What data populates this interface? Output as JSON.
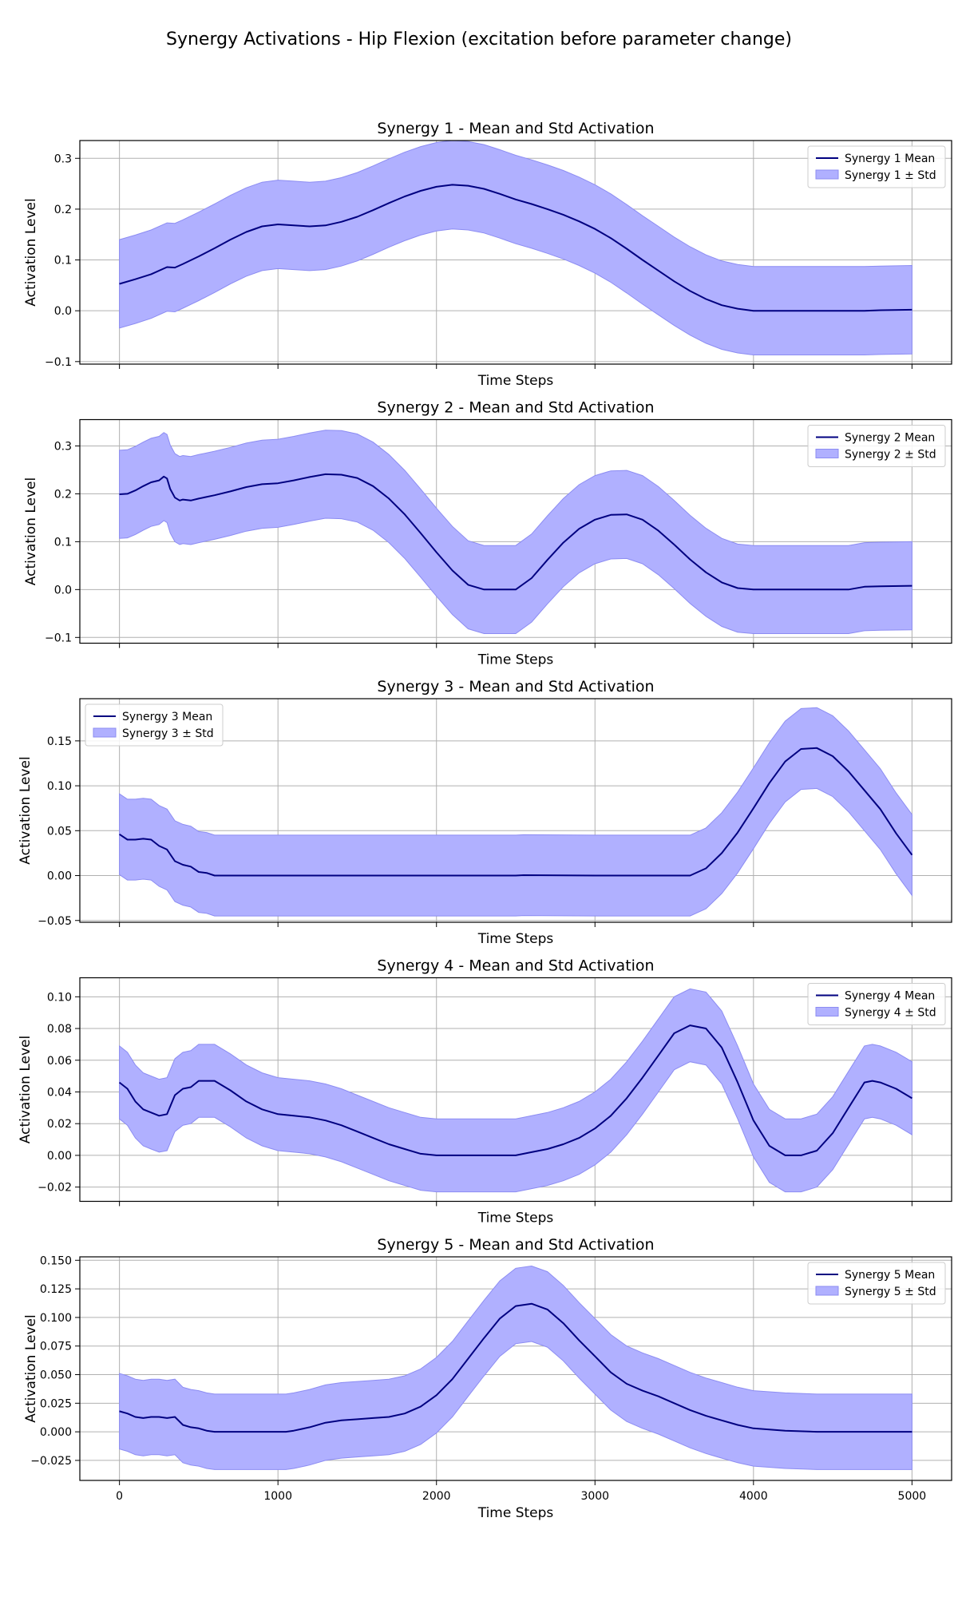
{
  "figure": {
    "title": "Synergy Activations - Hip Flexion (excitation before parameter change)"
  },
  "colors": {
    "mean_line": "#000080",
    "std_fill": "#b0b0ff",
    "std_edge": "#8c8cf2",
    "grid": "#b0b0b0",
    "axes": "#000000"
  },
  "chart_data": [
    {
      "type": "line",
      "title": "Synergy 1 - Mean and Std Activation",
      "xlabel": "Time Steps",
      "ylabel": "Activation Level",
      "xlim": [
        -250,
        5250
      ],
      "ylim": [
        -0.105,
        0.335
      ],
      "xticks": [
        0,
        1000,
        2000,
        3000,
        4000,
        5000
      ],
      "yticks": [
        -0.1,
        0.0,
        0.1,
        0.2,
        0.3
      ],
      "ytick_labels": [
        "−0.1",
        "0.0",
        "0.1",
        "0.2",
        "0.3"
      ],
      "show_xtick_labels": false,
      "grid": true,
      "legend_position": "top-right",
      "legend": [
        "Synergy 1 Mean",
        "Synergy 1 ± Std"
      ],
      "std": 0.087,
      "series": [
        {
          "name": "Synergy 1 Mean",
          "x": [
            0,
            100,
            200,
            300,
            350,
            400,
            500,
            600,
            700,
            800,
            900,
            1000,
            1100,
            1200,
            1300,
            1400,
            1500,
            1600,
            1700,
            1800,
            1900,
            2000,
            2100,
            2200,
            2300,
            2400,
            2500,
            2600,
            2700,
            2800,
            2900,
            3000,
            3100,
            3200,
            3300,
            3400,
            3500,
            3600,
            3700,
            3800,
            3900,
            4000,
            4200,
            4400,
            4600,
            4700,
            4800,
            5000
          ],
          "y": [
            0.053,
            0.062,
            0.072,
            0.086,
            0.085,
            0.092,
            0.107,
            0.123,
            0.14,
            0.155,
            0.166,
            0.17,
            0.168,
            0.166,
            0.168,
            0.175,
            0.185,
            0.198,
            0.212,
            0.225,
            0.236,
            0.244,
            0.248,
            0.246,
            0.24,
            0.23,
            0.219,
            0.21,
            0.2,
            0.189,
            0.176,
            0.161,
            0.143,
            0.122,
            0.1,
            0.079,
            0.058,
            0.039,
            0.023,
            0.011,
            0.004,
            0.0,
            0.0,
            0.0,
            0.0,
            0.0,
            0.001,
            0.002
          ]
        }
      ]
    },
    {
      "type": "line",
      "title": "Synergy 2 - Mean and Std Activation",
      "xlabel": "Time Steps",
      "ylabel": "Activation Level",
      "xlim": [
        -250,
        5250
      ],
      "ylim": [
        -0.112,
        0.355
      ],
      "xticks": [
        0,
        1000,
        2000,
        3000,
        4000,
        5000
      ],
      "yticks": [
        -0.1,
        0.0,
        0.1,
        0.2,
        0.3
      ],
      "ytick_labels": [
        "−0.1",
        "0.0",
        "0.1",
        "0.2",
        "0.3"
      ],
      "show_xtick_labels": false,
      "grid": true,
      "legend_position": "top-right",
      "legend": [
        "Synergy 2 Mean",
        "Synergy 2 ± Std"
      ],
      "std": 0.092,
      "series": [
        {
          "name": "Synergy 2 Mean",
          "x": [
            0,
            50,
            100,
            150,
            200,
            250,
            280,
            300,
            320,
            350,
            380,
            400,
            450,
            500,
            600,
            700,
            800,
            900,
            1000,
            1100,
            1200,
            1300,
            1400,
            1500,
            1600,
            1700,
            1800,
            1900,
            2000,
            2100,
            2200,
            2300,
            2400,
            2500,
            2600,
            2700,
            2800,
            2900,
            3000,
            3100,
            3200,
            3300,
            3400,
            3500,
            3600,
            3700,
            3800,
            3900,
            4000,
            4200,
            4400,
            4600,
            4700,
            4800,
            5000
          ],
          "y": [
            0.199,
            0.2,
            0.207,
            0.216,
            0.224,
            0.228,
            0.236,
            0.232,
            0.21,
            0.192,
            0.186,
            0.188,
            0.186,
            0.19,
            0.197,
            0.205,
            0.214,
            0.22,
            0.222,
            0.228,
            0.235,
            0.241,
            0.24,
            0.233,
            0.216,
            0.19,
            0.157,
            0.118,
            0.078,
            0.04,
            0.01,
            0.0,
            0.0,
            0.0,
            0.024,
            0.062,
            0.098,
            0.127,
            0.146,
            0.156,
            0.157,
            0.146,
            0.123,
            0.094,
            0.063,
            0.036,
            0.015,
            0.003,
            0.0,
            0.0,
            0.0,
            0.0,
            0.006,
            0.007,
            0.008
          ]
        }
      ]
    },
    {
      "type": "line",
      "title": "Synergy 3 - Mean and Std Activation",
      "xlabel": "Time Steps",
      "ylabel": "Activation Level",
      "xlim": [
        -250,
        5250
      ],
      "ylim": [
        -0.052,
        0.197
      ],
      "xticks": [
        0,
        1000,
        2000,
        3000,
        4000,
        5000
      ],
      "yticks": [
        -0.05,
        0.0,
        0.05,
        0.1,
        0.15
      ],
      "ytick_labels": [
        "−0.05",
        "0.00",
        "0.05",
        "0.10",
        "0.15"
      ],
      "show_xtick_labels": false,
      "grid": true,
      "legend_position": "top-left",
      "legend": [
        "Synergy 3 Mean",
        "Synergy 3 ± Std"
      ],
      "std": 0.045,
      "series": [
        {
          "name": "Synergy 3 Mean",
          "x": [
            0,
            50,
            100,
            150,
            200,
            250,
            300,
            350,
            400,
            450,
            500,
            550,
            600,
            700,
            1000,
            2000,
            2500,
            2550,
            3000,
            3500,
            3600,
            3700,
            3800,
            3900,
            4000,
            4100,
            4200,
            4300,
            4400,
            4500,
            4600,
            4700,
            4800,
            4900,
            5000
          ],
          "y": [
            0.046,
            0.04,
            0.04,
            0.041,
            0.04,
            0.033,
            0.029,
            0.016,
            0.012,
            0.01,
            0.004,
            0.003,
            0.0,
            0.0,
            0.0,
            0.0,
            0.0,
            0.0005,
            0.0,
            0.0,
            0.0,
            0.008,
            0.025,
            0.048,
            0.075,
            0.103,
            0.127,
            0.141,
            0.142,
            0.133,
            0.116,
            0.095,
            0.074,
            0.047,
            0.023
          ]
        }
      ]
    },
    {
      "type": "line",
      "title": "Synergy 4 - Mean and Std Activation",
      "xlabel": "Time Steps",
      "ylabel": "Activation Level",
      "xlim": [
        -250,
        5250
      ],
      "ylim": [
        -0.029,
        0.112
      ],
      "xticks": [
        0,
        1000,
        2000,
        3000,
        4000,
        5000
      ],
      "yticks": [
        -0.02,
        0.0,
        0.02,
        0.04,
        0.06,
        0.08,
        0.1
      ],
      "ytick_labels": [
        "−0.02",
        "0.00",
        "0.02",
        "0.04",
        "0.06",
        "0.08",
        "0.10"
      ],
      "show_xtick_labels": false,
      "grid": true,
      "legend_position": "top-right",
      "legend": [
        "Synergy 4 Mean",
        "Synergy 4 ± Std"
      ],
      "std": 0.023,
      "series": [
        {
          "name": "Synergy 4 Mean",
          "x": [
            0,
            50,
            100,
            150,
            200,
            250,
            300,
            350,
            400,
            450,
            500,
            550,
            600,
            700,
            800,
            900,
            1000,
            1100,
            1200,
            1300,
            1400,
            1500,
            1600,
            1700,
            1800,
            1900,
            2000,
            2100,
            2200,
            2300,
            2400,
            2500,
            2600,
            2700,
            2800,
            2900,
            3000,
            3100,
            3200,
            3300,
            3400,
            3500,
            3600,
            3700,
            3800,
            3900,
            4000,
            4100,
            4200,
            4300,
            4400,
            4500,
            4600,
            4700,
            4750,
            4800,
            4900,
            5000
          ],
          "y": [
            0.046,
            0.042,
            0.034,
            0.029,
            0.027,
            0.025,
            0.026,
            0.038,
            0.042,
            0.043,
            0.047,
            0.047,
            0.047,
            0.041,
            0.034,
            0.029,
            0.026,
            0.025,
            0.024,
            0.022,
            0.019,
            0.015,
            0.011,
            0.007,
            0.004,
            0.001,
            0.0,
            0.0,
            0.0,
            0.0,
            0.0,
            0.0,
            0.002,
            0.004,
            0.007,
            0.011,
            0.017,
            0.025,
            0.036,
            0.049,
            0.063,
            0.077,
            0.082,
            0.08,
            0.068,
            0.046,
            0.022,
            0.006,
            0.0,
            0.0,
            0.003,
            0.014,
            0.03,
            0.046,
            0.047,
            0.046,
            0.042,
            0.036
          ]
        }
      ]
    },
    {
      "type": "line",
      "title": "Synergy 5 - Mean and Std Activation",
      "xlabel": "Time Steps",
      "ylabel": "Activation Level",
      "xlim": [
        -250,
        5250
      ],
      "ylim": [
        -0.0425,
        0.153
      ],
      "xticks": [
        0,
        1000,
        2000,
        3000,
        4000,
        5000
      ],
      "xtick_labels": [
        "0",
        "1000",
        "2000",
        "3000",
        "4000",
        "5000"
      ],
      "yticks": [
        -0.025,
        0.0,
        0.025,
        0.05,
        0.075,
        0.1,
        0.125,
        0.15
      ],
      "ytick_labels": [
        "−0.025",
        "0.000",
        "0.025",
        "0.050",
        "0.075",
        "0.100",
        "0.125",
        "0.150"
      ],
      "show_xtick_labels": true,
      "grid": true,
      "legend_position": "top-right",
      "legend": [
        "Synergy 5 Mean",
        "Synergy 5 ± Std"
      ],
      "std": 0.033,
      "series": [
        {
          "name": "Synergy 5 Mean",
          "x": [
            0,
            50,
            100,
            150,
            200,
            250,
            300,
            350,
            400,
            450,
            500,
            550,
            600,
            700,
            800,
            900,
            1000,
            1050,
            1100,
            1200,
            1300,
            1400,
            1500,
            1600,
            1700,
            1800,
            1900,
            2000,
            2100,
            2200,
            2300,
            2400,
            2500,
            2600,
            2700,
            2800,
            2900,
            3000,
            3100,
            3200,
            3300,
            3400,
            3500,
            3600,
            3700,
            3800,
            3900,
            4000,
            4200,
            4400,
            4600,
            4800,
            5000
          ],
          "y": [
            0.018,
            0.016,
            0.013,
            0.012,
            0.013,
            0.013,
            0.012,
            0.013,
            0.006,
            0.004,
            0.003,
            0.001,
            0.0,
            0.0,
            0.0,
            0.0,
            0.0,
            0.0,
            0.001,
            0.004,
            0.008,
            0.01,
            0.011,
            0.012,
            0.013,
            0.016,
            0.022,
            0.032,
            0.046,
            0.064,
            0.082,
            0.099,
            0.11,
            0.112,
            0.107,
            0.095,
            0.08,
            0.066,
            0.052,
            0.042,
            0.036,
            0.031,
            0.025,
            0.019,
            0.014,
            0.01,
            0.006,
            0.003,
            0.001,
            0.0,
            0.0,
            0.0,
            0.0
          ]
        }
      ]
    }
  ]
}
